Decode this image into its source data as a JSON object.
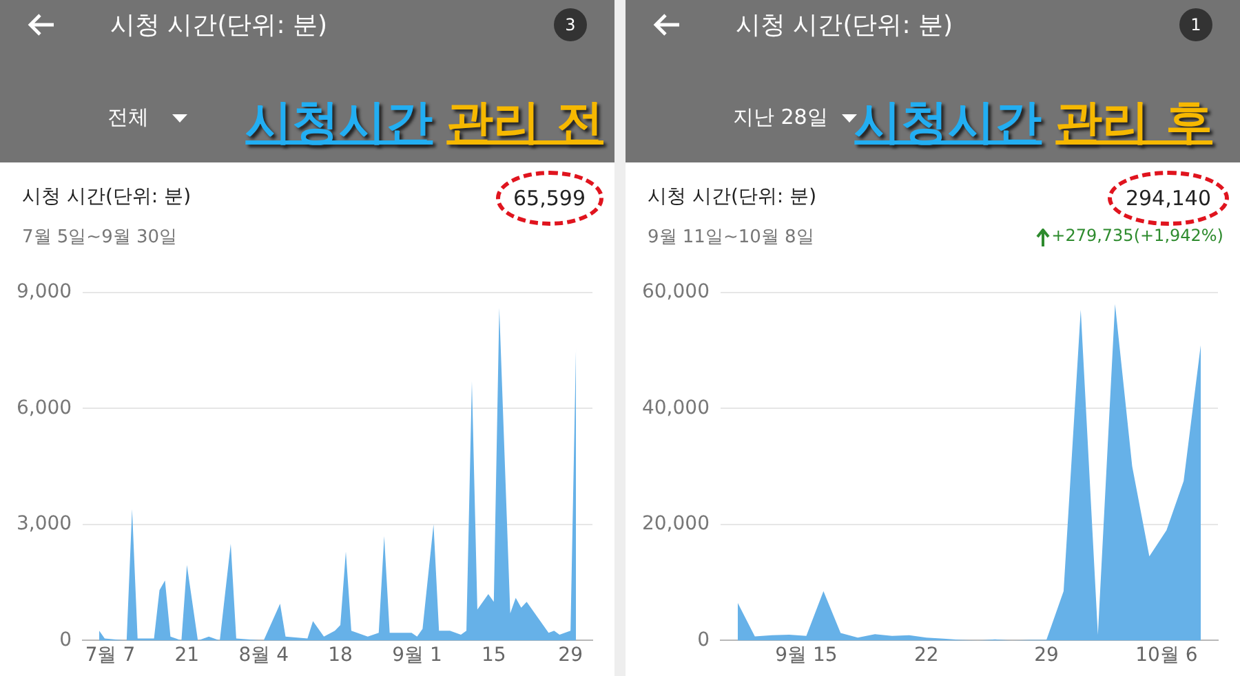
{
  "chart_data": [
    {
      "type": "area",
      "title": "시청 시간(단위: 분)",
      "subtitle": "7월 5일~9월 30일",
      "annotations": [
        "시청 시간(단위: 분)",
        "3",
        "전체",
        "시청시간",
        "관리 전",
        "65,599"
      ],
      "x": [
        "--07-05",
        "--07-06",
        "--07-10",
        "--07-11",
        "--07-12",
        "--07-15",
        "--07-16",
        "--07-17",
        "--07-18",
        "--07-20",
        "--07-21",
        "--07-23",
        "--07-25",
        "--07-27",
        "--07-29",
        "--07-30",
        "--08-04",
        "--08-07",
        "--08-08",
        "--08-12",
        "--08-13",
        "--08-15",
        "--08-17",
        "--08-18",
        "--08-19",
        "--08-20",
        "--08-23",
        "--08-25",
        "--08-26",
        "--08-27",
        "--08-31",
        "--09-01",
        "--09-02",
        "--09-04",
        "--09-05",
        "--09-07",
        "--09-09",
        "--09-10",
        "--09-11",
        "--09-12",
        "--09-14",
        "--09-15",
        "--09-16",
        "--09-18",
        "--09-19",
        "--09-20",
        "--09-21",
        "--09-25",
        "--09-26",
        "--09-27",
        "--09-29",
        "--09-30"
      ],
      "values": [
        250,
        50,
        0,
        3400,
        50,
        50,
        1300,
        1550,
        100,
        0,
        1950,
        0,
        100,
        0,
        2500,
        50,
        0,
        950,
        100,
        50,
        500,
        100,
        250,
        400,
        2300,
        250,
        100,
        200,
        2700,
        200,
        200,
        100,
        300,
        3000,
        250,
        250,
        150,
        250,
        6700,
        800,
        1200,
        1000,
        8600,
        700,
        1100,
        850,
        1000,
        200,
        250,
        150,
        250,
        7600
      ],
      "color": "#66b1e8",
      "xlim": [
        "--07-02",
        "--10-03"
      ],
      "xticks": [
        {
          "value": "--07-07",
          "label": "7월 7"
        },
        {
          "value": "--07-21",
          "label": "21"
        },
        {
          "value": "--08-04",
          "label": "8월 4"
        },
        {
          "value": "--08-18",
          "label": "18"
        },
        {
          "value": "--09-01",
          "label": "9월 1"
        },
        {
          "value": "--09-15",
          "label": "15"
        },
        {
          "value": "--09-29",
          "label": "29"
        }
      ],
      "ylim": [
        0,
        9000
      ],
      "yticks": [
        0,
        {
          "value": 3000,
          "label": "3,000"
        },
        {
          "value": 6000,
          "label": "6,000"
        },
        {
          "value": 9000,
          "label": "9,000"
        }
      ],
      "grid": "y"
    },
    {
      "type": "area",
      "title": "시청 시간(단위: 분)",
      "subtitle": "9월 11일~10월 8일",
      "annotations": [
        "시청 시간(단위: 분)",
        "1",
        "지난 28일",
        "시청시간",
        "관리 후",
        "294,140",
        "+279,735(+1,942%)"
      ],
      "x": [
        "--09-11",
        "--09-12",
        "--09-13",
        "--09-14",
        "--09-15",
        "--09-16",
        "--09-17",
        "--09-18",
        "--09-19",
        "--09-20",
        "--09-21",
        "--09-22",
        "--09-23",
        "--09-24",
        "--09-25",
        "--09-26",
        "--09-27",
        "--09-28",
        "--09-29",
        "--09-30",
        "--10-01",
        "--10-02",
        "--10-03",
        "--10-04",
        "--10-05",
        "--10-06",
        "--10-07",
        "--10-08"
      ],
      "values": [
        6500,
        700,
        900,
        1000,
        800,
        8500,
        1300,
        500,
        1100,
        800,
        900,
        500,
        300,
        100,
        0,
        200,
        0,
        100,
        100,
        8500,
        57000,
        1000,
        58000,
        30000,
        14500,
        19000,
        27500,
        51000
      ],
      "color": "#66b1e8",
      "xlim": [
        "--09-10",
        "--10-09"
      ],
      "xticks": [
        {
          "value": "--09-15",
          "label": "9월 15"
        },
        {
          "value": "--09-22",
          "label": "22"
        },
        {
          "value": "--09-29",
          "label": "29"
        },
        {
          "value": "--10-06",
          "label": "10월 6"
        }
      ],
      "ylim": [
        0,
        60000
      ],
      "yticks": [
        0,
        {
          "value": 20000,
          "label": "20,000"
        },
        {
          "value": 40000,
          "label": "40,000"
        },
        {
          "value": 60000,
          "label": "60,000"
        }
      ],
      "grid": "y"
    }
  ]
}
